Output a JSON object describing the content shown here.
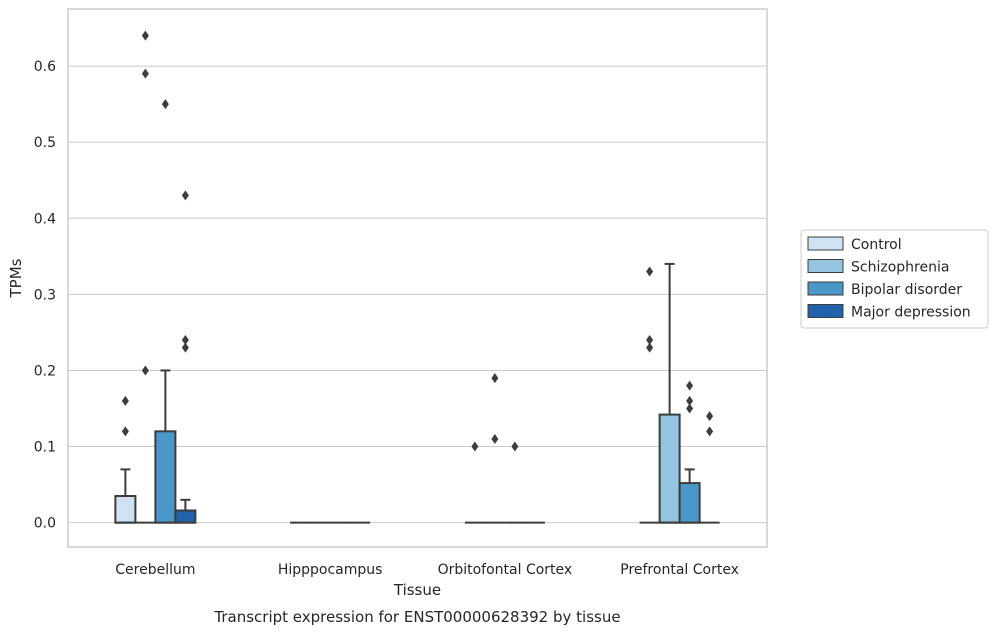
{
  "chart_data": {
    "type": "box",
    "ylabel": "TPMs",
    "xlabel": "Tissue",
    "caption": "Transcript expression for ENST00000628392 by tissue",
    "ylim": [
      -0.032,
      0.675
    ],
    "y_ticks": [
      "0.0",
      "0.1",
      "0.2",
      "0.3",
      "0.4",
      "0.5",
      "0.6"
    ],
    "y_tick_values": [
      0,
      0.1,
      0.2,
      0.3,
      0.4,
      0.5,
      0.6
    ],
    "grid": true,
    "legend_position": "right",
    "categories": [
      "Cerebellum",
      "Hipppocampus",
      "Orbitofontal Cortex",
      "Prefrontal Cortex"
    ],
    "series": [
      {
        "name": "Control",
        "color": "#d0e1f2",
        "boxes": [
          {
            "q1": 0,
            "median": 0,
            "q3": 0.035,
            "whisker_low": 0,
            "whisker_high": 0.07,
            "outliers": [
              0.12,
              0.16
            ]
          },
          {
            "q1": 0,
            "median": 0,
            "q3": 0,
            "whisker_low": 0,
            "whisker_high": 0,
            "outliers": []
          },
          {
            "q1": 0,
            "median": 0,
            "q3": 0,
            "whisker_low": 0,
            "whisker_high": 0,
            "outliers": [
              0.1
            ]
          },
          {
            "q1": 0,
            "median": 0,
            "q3": 0,
            "whisker_low": 0,
            "whisker_high": 0,
            "outliers": [
              0.23,
              0.24,
              0.33
            ]
          }
        ]
      },
      {
        "name": "Schizophrenia",
        "color": "#94c4df",
        "boxes": [
          {
            "q1": 0,
            "median": 0,
            "q3": 0,
            "whisker_low": 0,
            "whisker_high": 0,
            "outliers": [
              0.2,
              0.59,
              0.64
            ]
          },
          {
            "q1": 0,
            "median": 0,
            "q3": 0,
            "whisker_low": 0,
            "whisker_high": 0,
            "outliers": []
          },
          {
            "q1": 0,
            "median": 0,
            "q3": 0,
            "whisker_low": 0,
            "whisker_high": 0,
            "outliers": [
              0.11,
              0.19
            ]
          },
          {
            "q1": 0,
            "median": 0,
            "q3": 0.142,
            "whisker_low": 0,
            "whisker_high": 0.34,
            "outliers": []
          }
        ]
      },
      {
        "name": "Bipolar disorder",
        "color": "#4a98c9",
        "boxes": [
          {
            "q1": 0,
            "median": 0,
            "q3": 0.12,
            "whisker_low": 0,
            "whisker_high": 0.2,
            "outliers": [
              0.55
            ]
          },
          {
            "q1": 0,
            "median": 0,
            "q3": 0,
            "whisker_low": 0,
            "whisker_high": 0,
            "outliers": []
          },
          {
            "q1": 0,
            "median": 0,
            "q3": 0,
            "whisker_low": 0,
            "whisker_high": 0,
            "outliers": [
              0.1
            ]
          },
          {
            "q1": 0,
            "median": 0,
            "q3": 0.052,
            "whisker_low": 0,
            "whisker_high": 0.07,
            "outliers": [
              0.15,
              0.16,
              0.18
            ]
          }
        ]
      },
      {
        "name": "Major depression",
        "color": "#2163aa",
        "boxes": [
          {
            "q1": 0,
            "median": 0,
            "q3": 0.016,
            "whisker_low": 0,
            "whisker_high": 0.03,
            "outliers": [
              0.23,
              0.24,
              0.43
            ]
          },
          {
            "q1": 0,
            "median": 0,
            "q3": 0,
            "whisker_low": 0,
            "whisker_high": 0,
            "outliers": []
          },
          {
            "q1": 0,
            "median": 0,
            "q3": 0,
            "whisker_low": 0,
            "whisker_high": 0,
            "outliers": []
          },
          {
            "q1": 0,
            "median": 0,
            "q3": 0,
            "whisker_low": 0,
            "whisker_high": 0,
            "outliers": [
              0.12,
              0.14
            ]
          }
        ]
      }
    ],
    "colors": {
      "grid": "#cccccc",
      "frame": "#cccccc",
      "box_edge": "#3d3d3d",
      "outlier": "#3d3d3d"
    }
  }
}
